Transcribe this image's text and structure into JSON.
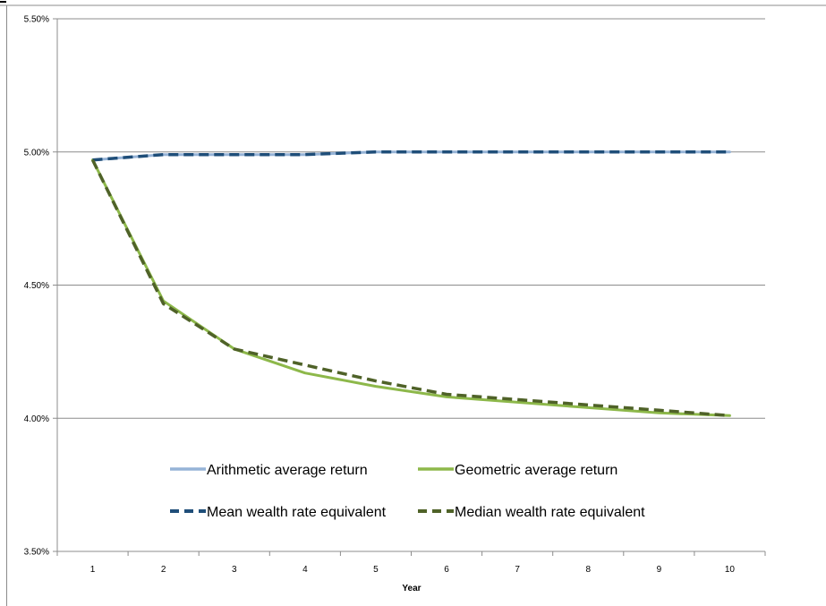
{
  "chart_data": {
    "type": "line",
    "title": "",
    "xlabel": "Year",
    "ylabel": "",
    "x": [
      1,
      2,
      3,
      4,
      5,
      6,
      7,
      8,
      9,
      10
    ],
    "x_tick_labels": [
      "1",
      "2",
      "3",
      "4",
      "5",
      "6",
      "7",
      "8",
      "9",
      "10"
    ],
    "ylim": [
      0.035,
      0.055
    ],
    "y_ticks": [
      0.035,
      0.04,
      0.045,
      0.05,
      0.055
    ],
    "y_tick_labels": [
      "3.50%",
      "4.00%",
      "4.50%",
      "5.00%",
      "5.50%"
    ],
    "grid": "horizontal major",
    "legend_position": "inside-bottom, two columns",
    "series": [
      {
        "name": "Arithmetic average return",
        "color": "#95B3D7",
        "style": "solid",
        "values": [
          0.0497,
          0.0499,
          0.0499,
          0.0499,
          0.05,
          0.05,
          0.05,
          0.05,
          0.05,
          0.05
        ]
      },
      {
        "name": "Geometric average return",
        "color": "#8DB84A",
        "style": "solid",
        "values": [
          0.0497,
          0.0444,
          0.0426,
          0.0417,
          0.0412,
          0.0408,
          0.0406,
          0.0404,
          0.0402,
          0.0401
        ]
      },
      {
        "name": "Mean wealth rate equivalent",
        "color": "#1F4E79",
        "style": "dashed",
        "values": [
          0.0497,
          0.0499,
          0.0499,
          0.0499,
          0.05,
          0.05,
          0.05,
          0.05,
          0.05,
          0.05
        ]
      },
      {
        "name": "Median wealth rate equivalent",
        "color": "#4F6228",
        "style": "dashed",
        "values": [
          0.0497,
          0.0443,
          0.0426,
          0.042,
          0.0414,
          0.0409,
          0.0407,
          0.0405,
          0.0403,
          0.0401
        ]
      }
    ]
  }
}
